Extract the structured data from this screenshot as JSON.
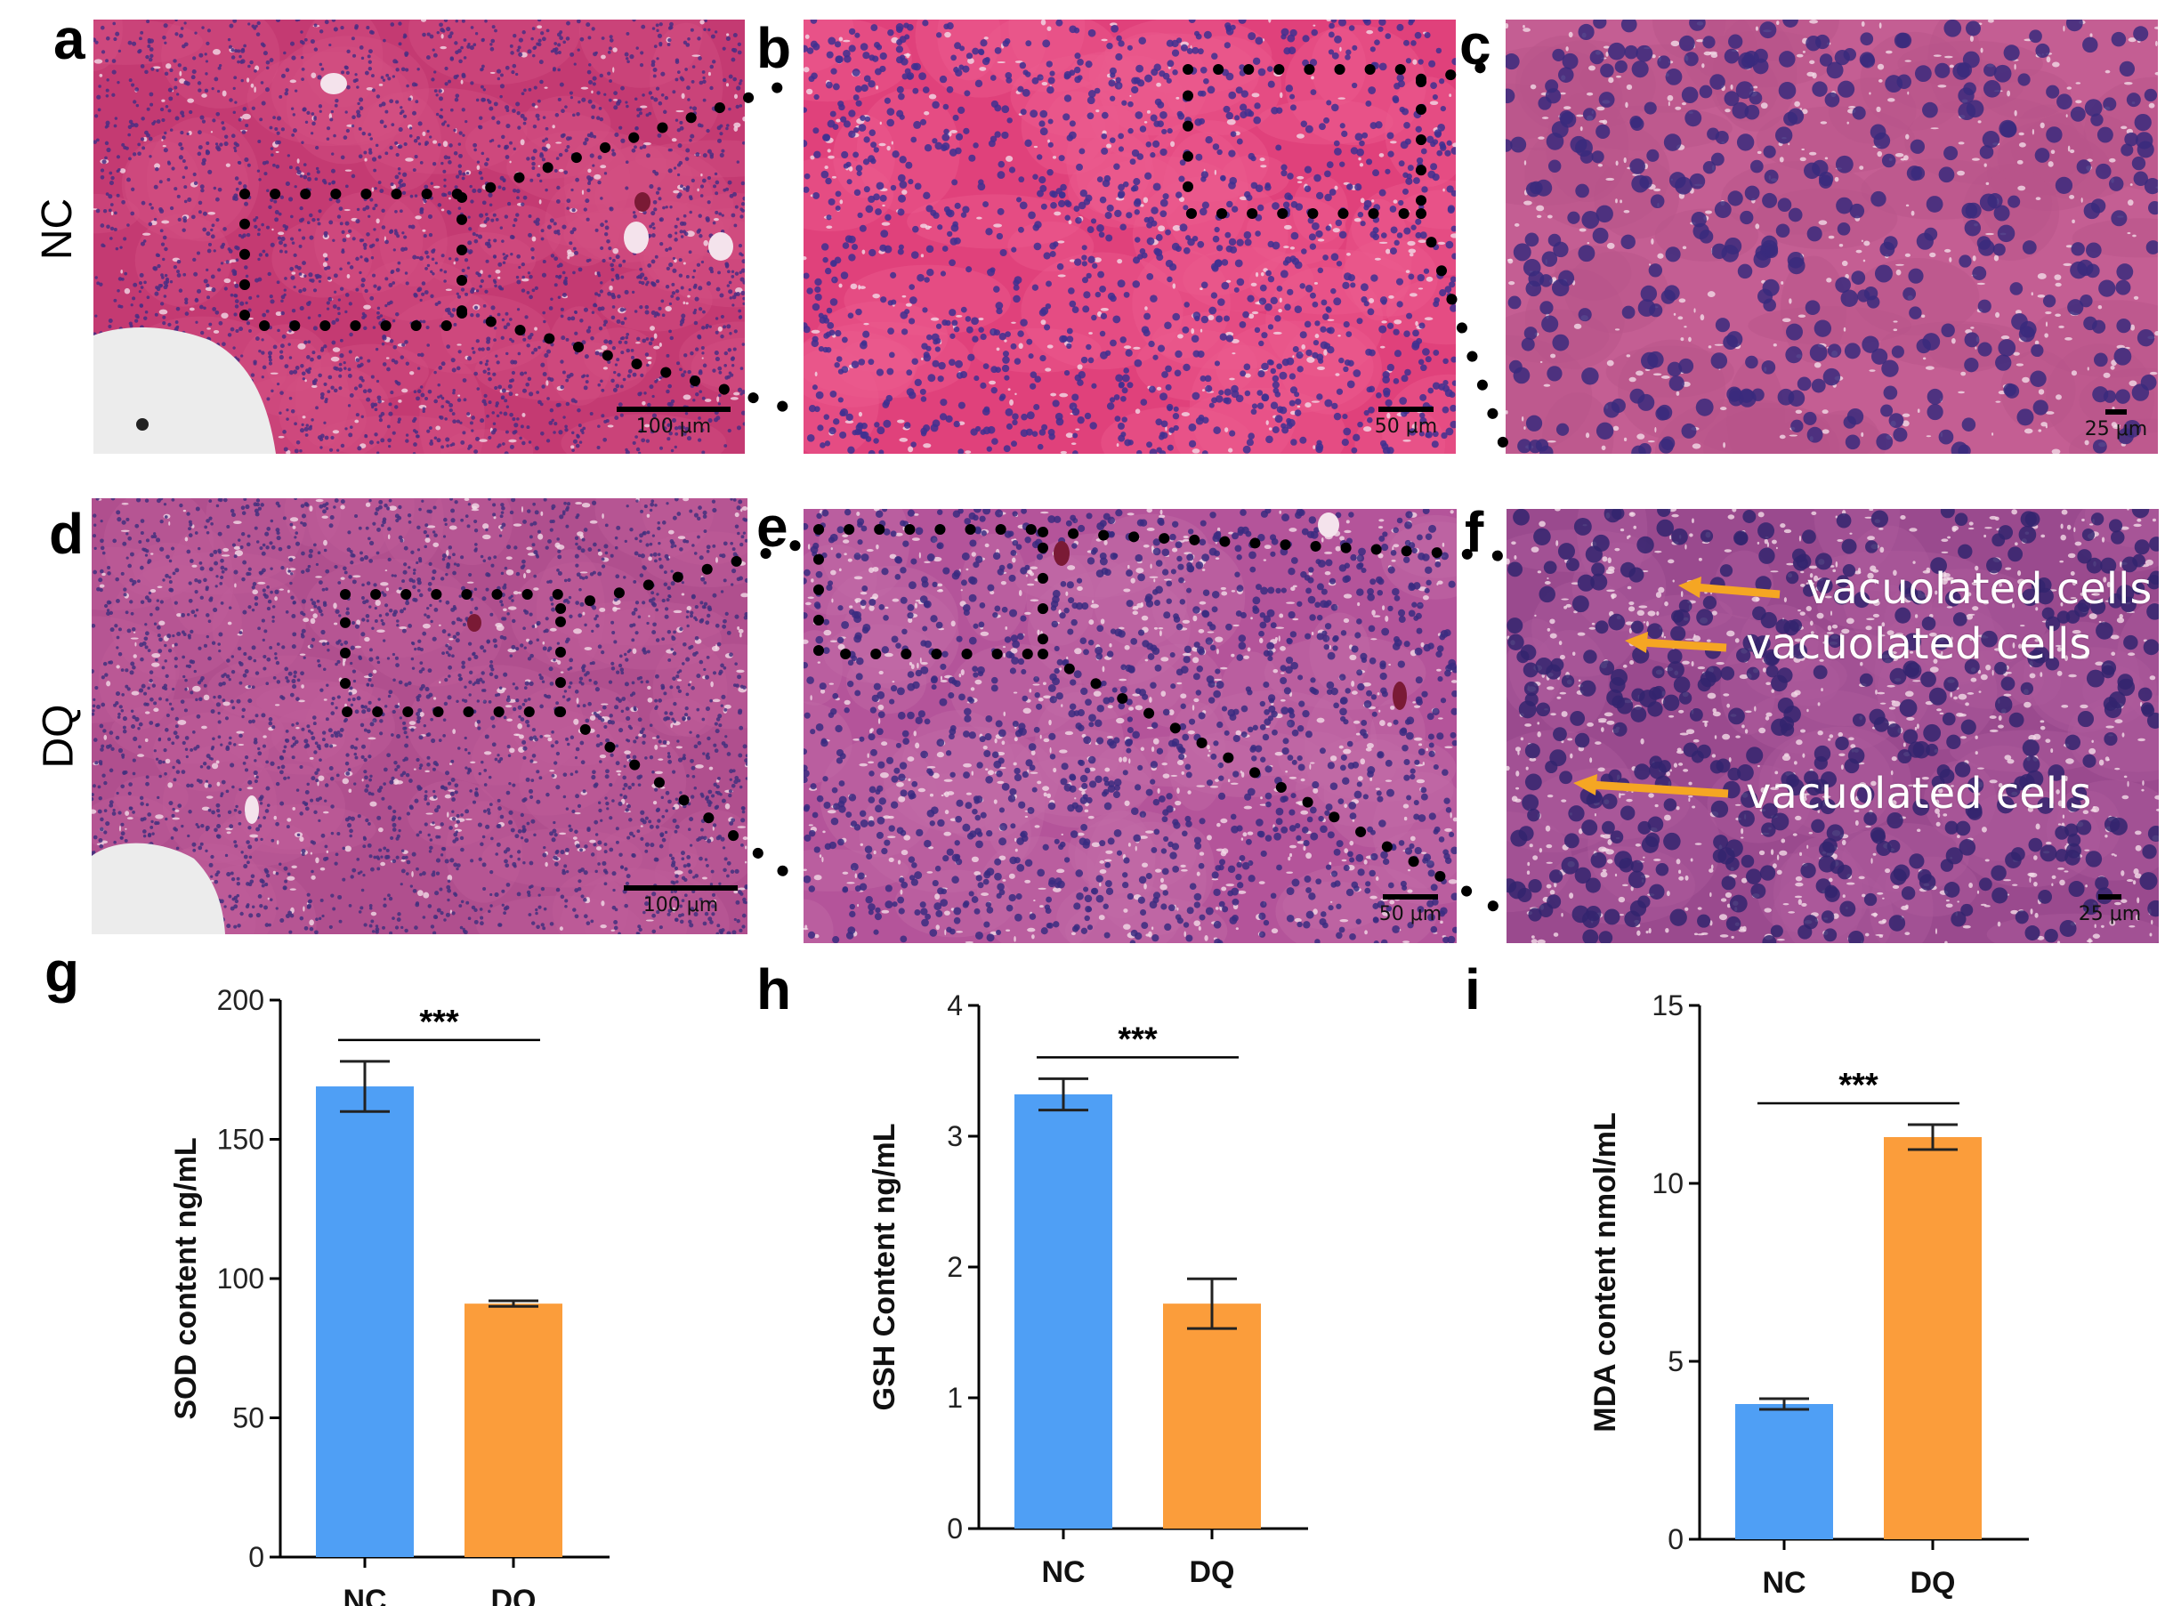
{
  "figure": {
    "panel_letters": [
      "a",
      "b",
      "c",
      "d",
      "e",
      "f",
      "g",
      "h",
      "i"
    ],
    "rows": [
      {
        "label": "NC"
      },
      {
        "label": "DQ"
      }
    ],
    "scale_bars": {
      "a": "100 μm",
      "b": "50 μm",
      "c": "25 μm",
      "d": "100 μm",
      "e": "50 μm",
      "f": "25 μm"
    },
    "annotations": [
      "vacuolated cells",
      "vacuolated cells",
      "vacuolated cells"
    ],
    "colors": {
      "tissue_nc": "#c8386f",
      "tissue_dq": "#a84a8a",
      "nucleus": "#3d2a7a",
      "arrow": "#f5a623",
      "bar_nc": "#4f9ff5",
      "bar_dq": "#fb9d3b"
    }
  },
  "chart_data": [
    {
      "type": "bar",
      "panel": "g",
      "categories": [
        "NC",
        "DQ"
      ],
      "values": [
        169,
        91
      ],
      "errors": [
        9,
        1
      ],
      "ylabel": "SOD content  ng/mL",
      "ylim": [
        0,
        200
      ],
      "yticks": [
        "0",
        "50",
        "100",
        "150",
        "200"
      ],
      "significance": "***",
      "colors": [
        "#4f9ff5",
        "#fb9d3b"
      ]
    },
    {
      "type": "bar",
      "panel": "h",
      "categories": [
        "NC",
        "DQ"
      ],
      "values": [
        3.32,
        1.72
      ],
      "errors": [
        0.12,
        0.19
      ],
      "ylabel": "GSH Content ng/mL",
      "ylim": [
        0,
        4
      ],
      "yticks": [
        "0",
        "1",
        "2",
        "3",
        "4"
      ],
      "significance": "***",
      "colors": [
        "#4f9ff5",
        "#fb9d3b"
      ]
    },
    {
      "type": "bar",
      "panel": "i",
      "categories": [
        "NC",
        "DQ"
      ],
      "values": [
        3.8,
        11.3
      ],
      "errors": [
        0.15,
        0.35
      ],
      "ylabel": "MDA content nmol/mL",
      "ylim": [
        0,
        15
      ],
      "yticks": [
        "0",
        "5",
        "10",
        "15"
      ],
      "significance": "***",
      "colors": [
        "#4f9ff5",
        "#fb9d3b"
      ]
    }
  ]
}
